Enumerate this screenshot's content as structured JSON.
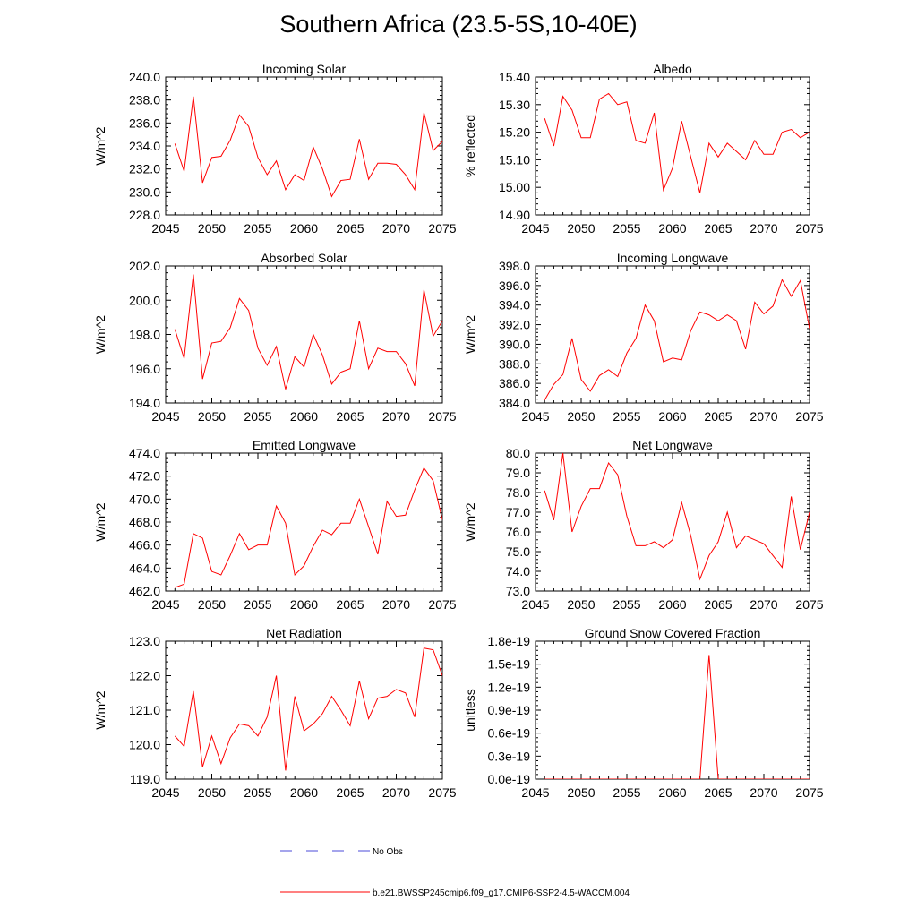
{
  "figure": {
    "title": "Southern Africa (23.5-5S,10-40E)"
  },
  "legend": {
    "entries": [
      {
        "label": "No Obs",
        "color": "#4b4bd8",
        "dash": true
      },
      {
        "label": "b.e21.BWSSP245cmip6.f09_g17.CMIP6-SSP2-4.5-WACCM.004",
        "color": "#ff0000",
        "dash": false
      }
    ]
  },
  "chart_data": [
    {
      "type": "line",
      "title": "Incoming Solar",
      "ylabel": "W/m^2",
      "xlabel": "",
      "xlim": [
        2045,
        2075
      ],
      "ylim": [
        228,
        240
      ],
      "xticks": [
        2045,
        2050,
        2055,
        2060,
        2065,
        2070,
        2075
      ],
      "yticks": [
        228,
        230,
        232,
        234,
        236,
        238,
        240
      ],
      "ytick_labels": [
        "228.0",
        "230.0",
        "232.0",
        "234.0",
        "236.0",
        "238.0",
        "240.0"
      ],
      "grid": false,
      "x": [
        2046,
        2047,
        2048,
        2049,
        2050,
        2051,
        2052,
        2053,
        2054,
        2055,
        2056,
        2057,
        2058,
        2059,
        2060,
        2061,
        2062,
        2063,
        2064,
        2065,
        2066,
        2067,
        2068,
        2069,
        2070,
        2071,
        2072,
        2073,
        2074,
        2075
      ],
      "series": [
        {
          "color": "#ff0000",
          "values": [
            234.2,
            231.8,
            238.3,
            230.8,
            233.0,
            233.1,
            234.5,
            236.7,
            235.7,
            233.0,
            231.5,
            232.7,
            230.2,
            231.5,
            231.0,
            233.9,
            232.0,
            229.6,
            231.0,
            231.1,
            234.6,
            231.1,
            232.5,
            232.5,
            232.4,
            231.5,
            230.2,
            236.9,
            233.6,
            234.4
          ]
        }
      ]
    },
    {
      "type": "line",
      "title": "Albedo",
      "ylabel": "% reflected",
      "xlabel": "",
      "xlim": [
        2045,
        2075
      ],
      "ylim": [
        14.9,
        15.4
      ],
      "xticks": [
        2045,
        2050,
        2055,
        2060,
        2065,
        2070,
        2075
      ],
      "yticks": [
        14.9,
        15.0,
        15.1,
        15.2,
        15.3,
        15.4
      ],
      "ytick_labels": [
        "14.90",
        "15.00",
        "15.10",
        "15.20",
        "15.30",
        "15.40"
      ],
      "grid": false,
      "x": [
        2046,
        2047,
        2048,
        2049,
        2050,
        2051,
        2052,
        2053,
        2054,
        2055,
        2056,
        2057,
        2058,
        2059,
        2060,
        2061,
        2062,
        2063,
        2064,
        2065,
        2066,
        2067,
        2068,
        2069,
        2070,
        2071,
        2072,
        2073,
        2074,
        2075
      ],
      "series": [
        {
          "color": "#ff0000",
          "values": [
            15.25,
            15.15,
            15.33,
            15.28,
            15.18,
            15.18,
            15.32,
            15.34,
            15.3,
            15.31,
            15.17,
            15.16,
            15.27,
            14.99,
            15.07,
            15.24,
            15.11,
            14.98,
            15.16,
            15.11,
            15.16,
            15.13,
            15.1,
            15.17,
            15.12,
            15.12,
            15.2,
            15.21,
            15.18,
            15.2
          ]
        }
      ]
    },
    {
      "type": "line",
      "title": "Absorbed Solar",
      "ylabel": "W/m^2",
      "xlabel": "",
      "xlim": [
        2045,
        2075
      ],
      "ylim": [
        194,
        202
      ],
      "xticks": [
        2045,
        2050,
        2055,
        2060,
        2065,
        2070,
        2075
      ],
      "yticks": [
        194,
        196,
        198,
        200,
        202
      ],
      "ytick_labels": [
        "194.0",
        "196.0",
        "198.0",
        "200.0",
        "202.0"
      ],
      "grid": false,
      "x": [
        2046,
        2047,
        2048,
        2049,
        2050,
        2051,
        2052,
        2053,
        2054,
        2055,
        2056,
        2057,
        2058,
        2059,
        2060,
        2061,
        2062,
        2063,
        2064,
        2065,
        2066,
        2067,
        2068,
        2069,
        2070,
        2071,
        2072,
        2073,
        2074,
        2075
      ],
      "series": [
        {
          "color": "#ff0000",
          "values": [
            198.3,
            196.6,
            201.5,
            195.4,
            197.5,
            197.6,
            198.4,
            200.1,
            199.4,
            197.2,
            196.2,
            197.3,
            194.8,
            196.7,
            196.1,
            198.0,
            196.8,
            195.1,
            195.8,
            196.0,
            198.8,
            196.0,
            197.2,
            197.0,
            197.0,
            196.3,
            195.0,
            200.6,
            197.9,
            198.8
          ]
        }
      ]
    },
    {
      "type": "line",
      "title": "Incoming Longwave",
      "ylabel": "W/m^2",
      "xlabel": "",
      "xlim": [
        2045,
        2075
      ],
      "ylim": [
        384,
        398
      ],
      "xticks": [
        2045,
        2050,
        2055,
        2060,
        2065,
        2070,
        2075
      ],
      "yticks": [
        384,
        386,
        388,
        390,
        392,
        394,
        396,
        398
      ],
      "ytick_labels": [
        "384.0",
        "386.0",
        "388.0",
        "390.0",
        "392.0",
        "394.0",
        "396.0",
        "398.0"
      ],
      "grid": false,
      "x": [
        2046,
        2047,
        2048,
        2049,
        2050,
        2051,
        2052,
        2053,
        2054,
        2055,
        2056,
        2057,
        2058,
        2059,
        2060,
        2061,
        2062,
        2063,
        2064,
        2065,
        2066,
        2067,
        2068,
        2069,
        2070,
        2071,
        2072,
        2073,
        2074,
        2075
      ],
      "series": [
        {
          "color": "#ff0000",
          "values": [
            384.3,
            385.9,
            386.9,
            390.6,
            386.4,
            385.2,
            386.8,
            387.4,
            386.7,
            389.1,
            390.6,
            394.0,
            392.4,
            388.2,
            388.6,
            388.4,
            391.4,
            393.3,
            393.0,
            392.4,
            393.0,
            392.4,
            389.5,
            394.3,
            393.1,
            393.9,
            396.6,
            394.9,
            396.5,
            391.6
          ]
        }
      ]
    },
    {
      "type": "line",
      "title": "Emitted Longwave",
      "ylabel": "W/m^2",
      "xlabel": "",
      "xlim": [
        2045,
        2075
      ],
      "ylim": [
        462,
        474
      ],
      "xticks": [
        2045,
        2050,
        2055,
        2060,
        2065,
        2070,
        2075
      ],
      "yticks": [
        462,
        464,
        466,
        468,
        470,
        472,
        474
      ],
      "ytick_labels": [
        "462.0",
        "464.0",
        "466.0",
        "468.0",
        "470.0",
        "472.0",
        "474.0"
      ],
      "grid": false,
      "x": [
        2046,
        2047,
        2048,
        2049,
        2050,
        2051,
        2052,
        2053,
        2054,
        2055,
        2056,
        2057,
        2058,
        2059,
        2060,
        2061,
        2062,
        2063,
        2064,
        2065,
        2066,
        2067,
        2068,
        2069,
        2070,
        2071,
        2072,
        2073,
        2074,
        2075
      ],
      "series": [
        {
          "color": "#ff0000",
          "values": [
            462.3,
            462.6,
            467.0,
            466.6,
            463.7,
            463.4,
            465.1,
            467.0,
            465.6,
            466.0,
            466.0,
            469.4,
            467.9,
            463.4,
            464.2,
            465.9,
            467.3,
            466.9,
            467.9,
            467.9,
            470.0,
            467.6,
            465.2,
            469.8,
            468.5,
            468.6,
            470.8,
            472.7,
            471.6,
            468.2
          ]
        }
      ]
    },
    {
      "type": "line",
      "title": "Net Longwave",
      "ylabel": "W/m^2",
      "xlabel": "",
      "xlim": [
        2045,
        2075
      ],
      "ylim": [
        73,
        80
      ],
      "xticks": [
        2045,
        2050,
        2055,
        2060,
        2065,
        2070,
        2075
      ],
      "yticks": [
        73,
        74,
        75,
        76,
        77,
        78,
        79,
        80
      ],
      "ytick_labels": [
        "73.0",
        "74.0",
        "75.0",
        "76.0",
        "77.0",
        "78.0",
        "79.0",
        "80.0"
      ],
      "grid": false,
      "x": [
        2046,
        2047,
        2048,
        2049,
        2050,
        2051,
        2052,
        2053,
        2054,
        2055,
        2056,
        2057,
        2058,
        2059,
        2060,
        2061,
        2062,
        2063,
        2064,
        2065,
        2066,
        2067,
        2068,
        2069,
        2070,
        2071,
        2072,
        2073,
        2074,
        2075
      ],
      "series": [
        {
          "color": "#ff0000",
          "values": [
            78.1,
            76.6,
            80.0,
            76.0,
            77.3,
            78.2,
            78.2,
            79.5,
            78.9,
            76.8,
            75.3,
            75.3,
            75.5,
            75.2,
            75.6,
            77.5,
            75.8,
            73.6,
            74.8,
            75.5,
            77.0,
            75.2,
            75.8,
            75.6,
            75.4,
            74.8,
            74.2,
            77.8,
            75.1,
            77.0
          ]
        }
      ]
    },
    {
      "type": "line",
      "title": "Net Radiation",
      "ylabel": "W/m^2",
      "xlabel": "",
      "xlim": [
        2045,
        2075
      ],
      "ylim": [
        119,
        123
      ],
      "xticks": [
        2045,
        2050,
        2055,
        2060,
        2065,
        2070,
        2075
      ],
      "yticks": [
        119,
        120,
        121,
        122,
        123
      ],
      "ytick_labels": [
        "119.0",
        "120.0",
        "121.0",
        "122.0",
        "123.0"
      ],
      "grid": false,
      "x": [
        2046,
        2047,
        2048,
        2049,
        2050,
        2051,
        2052,
        2053,
        2054,
        2055,
        2056,
        2057,
        2058,
        2059,
        2060,
        2061,
        2062,
        2063,
        2064,
        2065,
        2066,
        2067,
        2068,
        2069,
        2070,
        2071,
        2072,
        2073,
        2074,
        2075
      ],
      "series": [
        {
          "color": "#ff0000",
          "values": [
            120.25,
            119.95,
            121.55,
            119.35,
            120.25,
            119.45,
            120.2,
            120.6,
            120.55,
            120.25,
            120.8,
            122.0,
            119.25,
            121.4,
            120.4,
            120.6,
            120.9,
            121.4,
            121.0,
            120.55,
            121.85,
            120.75,
            121.35,
            121.4,
            121.6,
            121.5,
            120.8,
            122.8,
            122.75,
            122.0
          ]
        }
      ]
    },
    {
      "type": "line",
      "title": "Ground Snow Covered Fraction",
      "ylabel": "unitless",
      "xlabel": "",
      "xlim": [
        2045,
        2075
      ],
      "ylim": [
        0,
        1.8e-19
      ],
      "xticks": [
        2045,
        2050,
        2055,
        2060,
        2065,
        2070,
        2075
      ],
      "yticks": [
        0,
        3e-20,
        6e-20,
        9e-20,
        1.2e-19,
        1.5e-19,
        1.8e-19
      ],
      "ytick_labels": [
        "0.0e-19",
        "0.3e-19",
        "0.6e-19",
        "0.9e-19",
        "1.2e-19",
        "1.5e-19",
        "1.8e-19"
      ],
      "grid": false,
      "x": [
        2046,
        2047,
        2048,
        2049,
        2050,
        2051,
        2052,
        2053,
        2054,
        2055,
        2056,
        2057,
        2058,
        2059,
        2060,
        2061,
        2062,
        2063,
        2064,
        2065,
        2066,
        2067,
        2068,
        2069,
        2070,
        2071,
        2072,
        2073,
        2074,
        2075
      ],
      "series": [
        {
          "color": "#ff0000",
          "values": [
            0,
            0,
            0,
            0,
            0,
            0,
            0,
            0,
            0,
            0,
            0,
            0,
            0,
            0,
            0,
            0,
            0,
            0,
            1.62e-19,
            0,
            0,
            0,
            0,
            0,
            0,
            0,
            0,
            0,
            0,
            0
          ]
        }
      ]
    }
  ]
}
